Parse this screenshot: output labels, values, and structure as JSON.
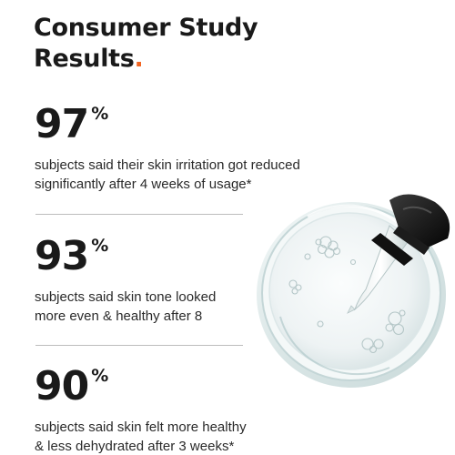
{
  "heading": {
    "line1": "Consumer Study",
    "line2": "Results",
    "accent_dot": ".",
    "accent_color": "#f26522"
  },
  "stats": [
    {
      "value": "97",
      "unit": "%",
      "desc_line1": "subjects said their skin irritation got reduced",
      "desc_line2": "significantly after 4 weeks of usage*"
    },
    {
      "value": "93",
      "unit": "%",
      "desc_line1": "subjects said skin tone looked",
      "desc_line2": "more even & healthy after 8"
    },
    {
      "value": "90",
      "unit": "%",
      "desc_line1": "subjects said skin felt more healthy",
      "desc_line2": "& less dehydrated after 3 weeks*"
    }
  ],
  "image": {
    "subject": "petri-dish-with-dropper"
  }
}
